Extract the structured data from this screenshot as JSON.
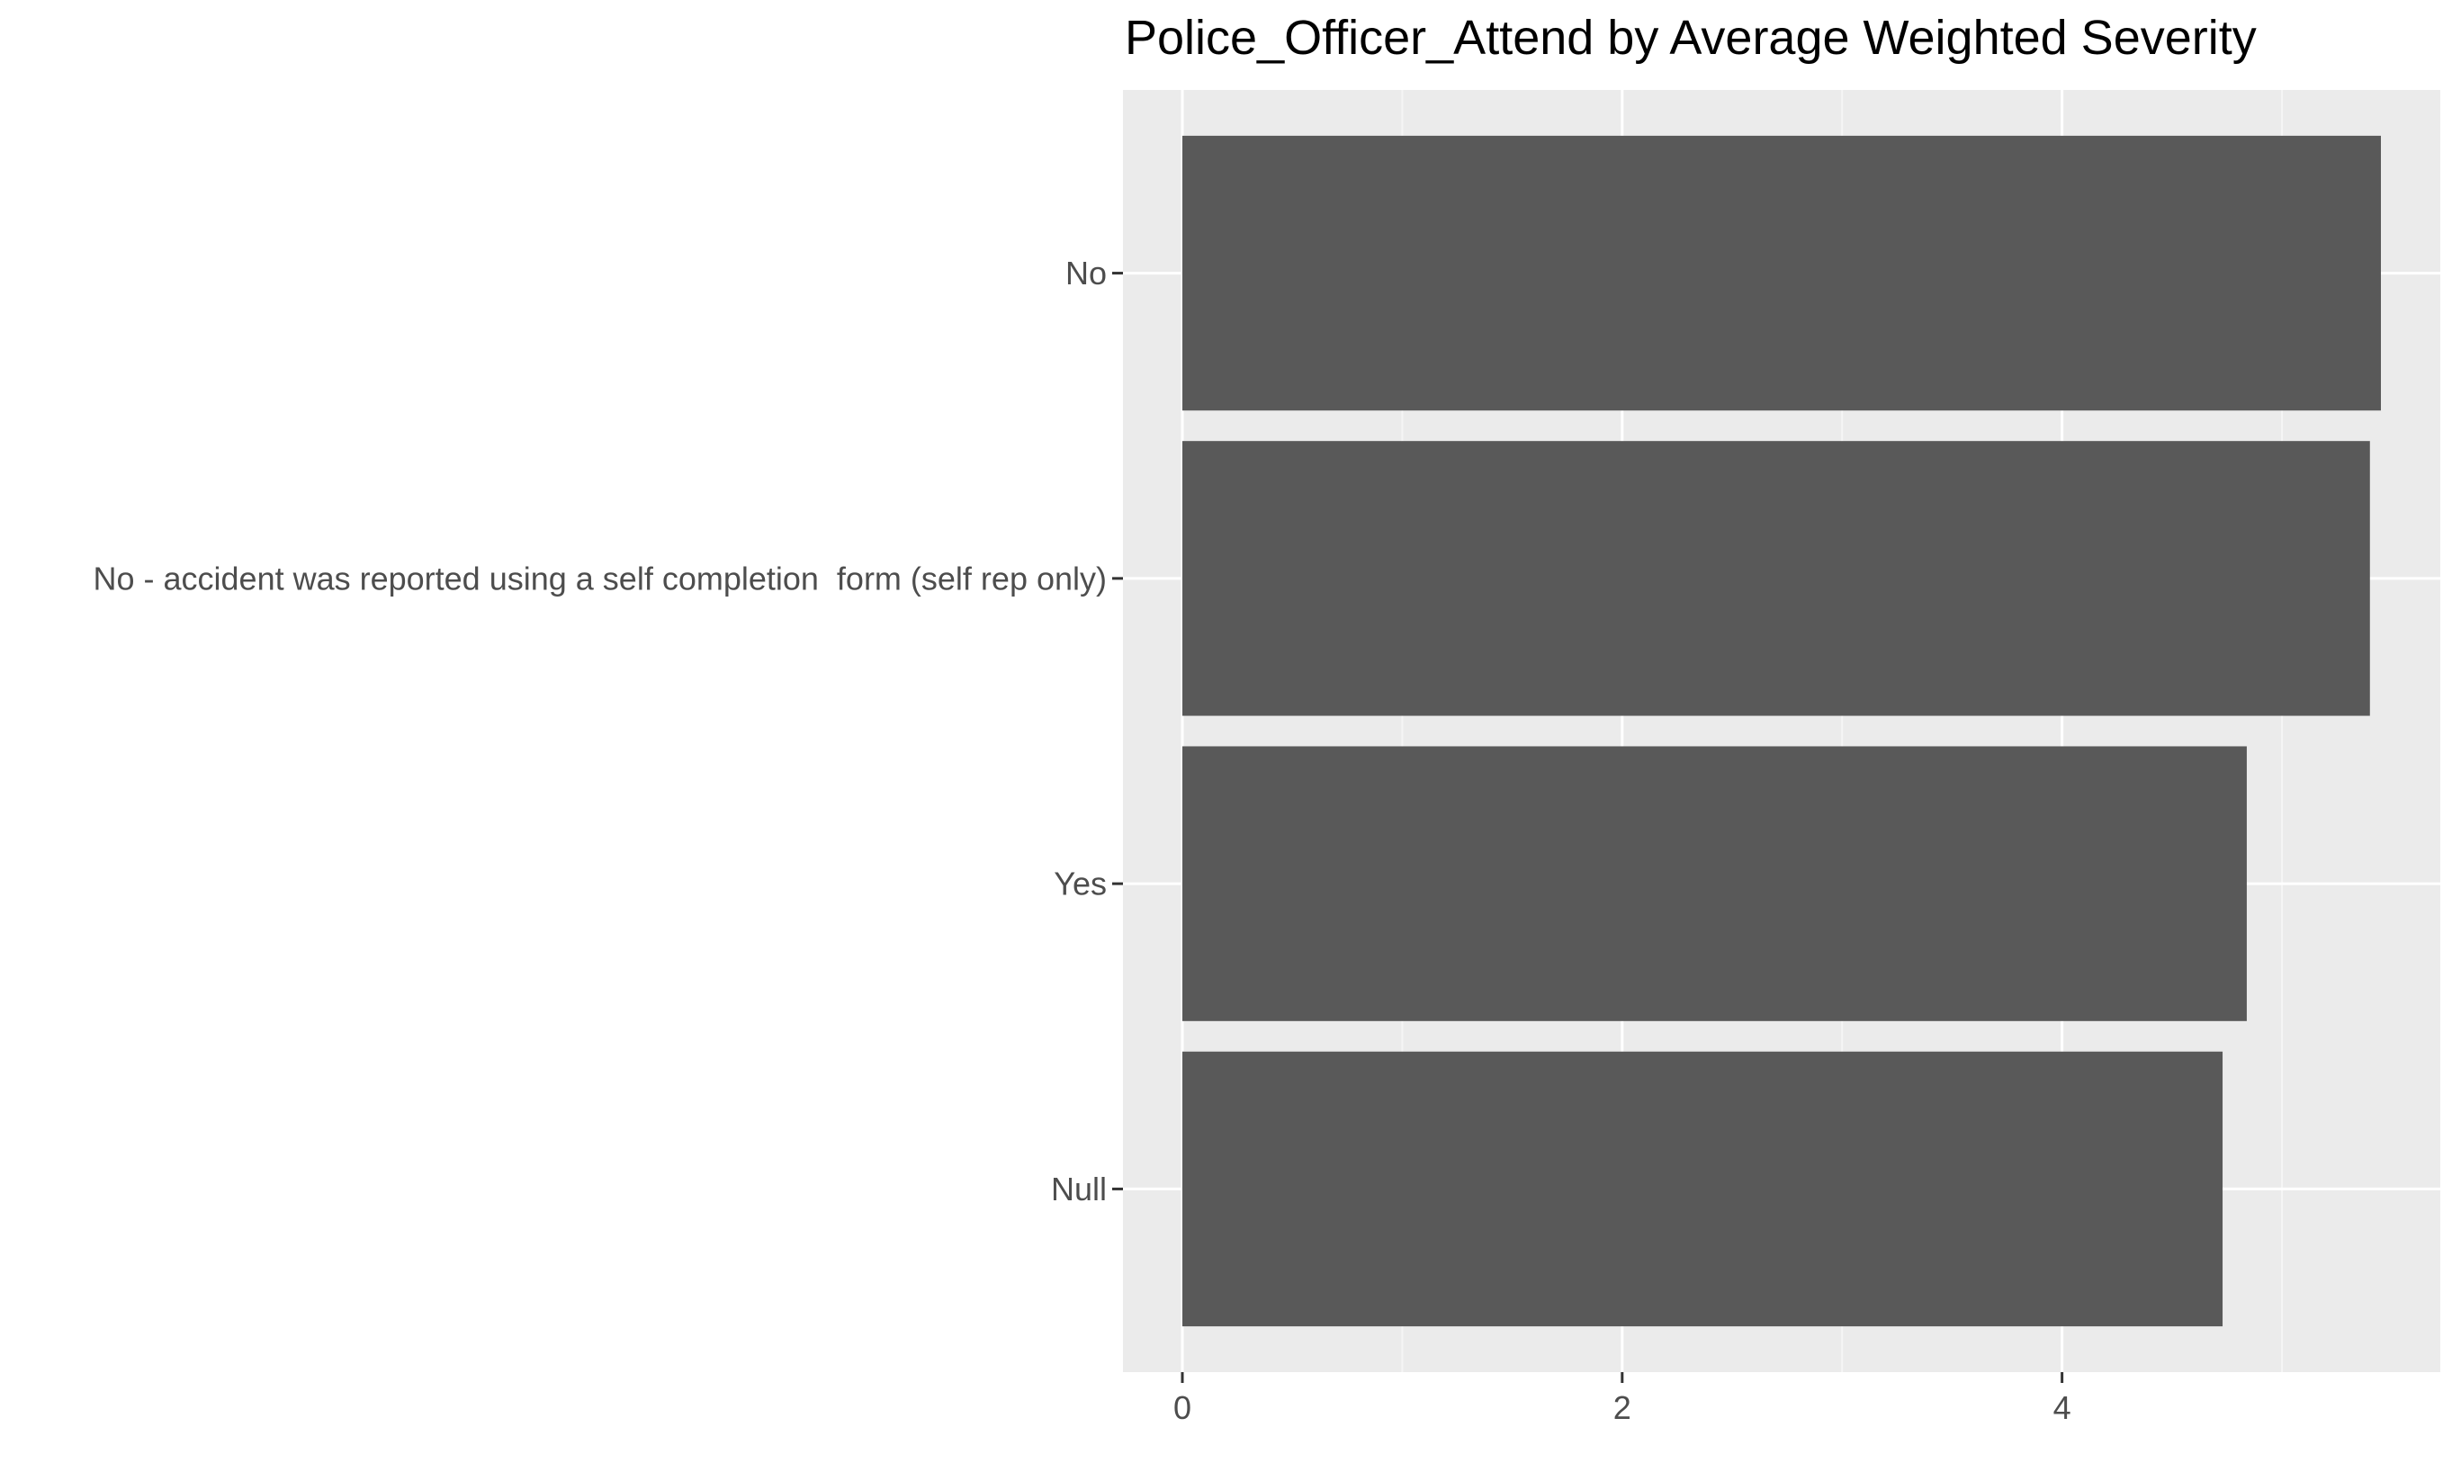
{
  "chart_data": {
    "type": "bar",
    "orientation": "horizontal",
    "title": "Police_Officer_Attend by Average Weighted Severity",
    "categories": [
      "No",
      "No - accident was reported using a self completion  form (self rep only)",
      "Yes",
      "Null"
    ],
    "values": [
      5.45,
      5.4,
      4.84,
      4.73
    ],
    "xlim": [
      -0.27,
      5.72
    ],
    "x_ticks": [
      0,
      2,
      4
    ],
    "x_tick_labels": [
      "0",
      "2",
      "4"
    ],
    "xlabel": "",
    "ylabel": "",
    "grid": true,
    "legend": "none",
    "colors": {
      "panel_background": "#ebebeb",
      "grid_major": "#ffffff",
      "grid_minor": "#f5f5f5",
      "bar_fill": "#595959",
      "axis_text": "#4d4d4d",
      "tick_mark": "#333333",
      "title": "#000000"
    }
  }
}
